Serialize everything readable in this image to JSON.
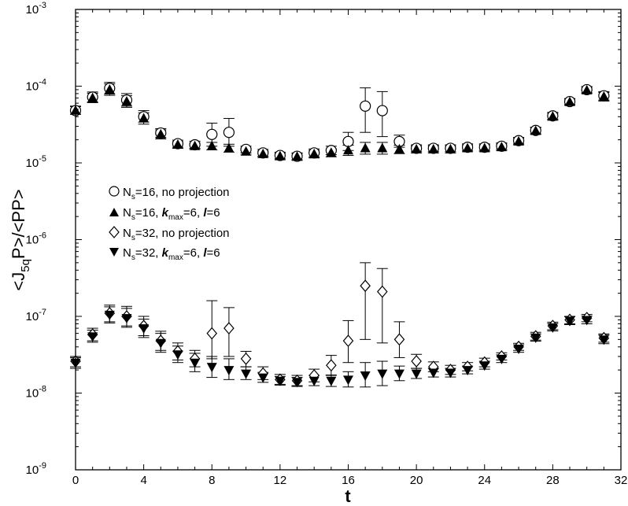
{
  "chart_data": {
    "type": "scatter",
    "xlabel": "t",
    "ylabel_parts": {
      "a": "<J",
      "a_sub": "5q",
      "b": "P>/<PP>"
    },
    "x_ticks": [
      0,
      4,
      8,
      12,
      16,
      20,
      24,
      28,
      32
    ],
    "y_ticks": [
      {
        "value": 1e-09,
        "base": "10",
        "exp": "-9"
      },
      {
        "value": 1e-08,
        "base": "10",
        "exp": "-8"
      },
      {
        "value": 1e-07,
        "base": "10",
        "exp": "-7"
      },
      {
        "value": 1e-06,
        "base": "10",
        "exp": "-6"
      },
      {
        "value": 1e-05,
        "base": "10",
        "exp": "-5"
      },
      {
        "value": 0.0001,
        "base": "10",
        "exp": "-4"
      },
      {
        "value": 0.001,
        "base": "10",
        "exp": "-3"
      }
    ],
    "xlim": [
      0,
      32
    ],
    "ylim": [
      1e-09,
      0.001
    ],
    "y_scale": "log",
    "grid": false,
    "legend_position": "center-left",
    "series": [
      {
        "marker": "circle-open",
        "legend": {
          "n": "N",
          "sub": "s",
          "rest": "=16, no projection"
        },
        "points": [
          [
            0,
            4.8e-05,
            4.3e-05,
            5.5e-05
          ],
          [
            1,
            7.2e-05,
            6.2e-05,
            8.4e-05
          ],
          [
            2,
            9.4e-05,
            7.9e-05,
            0.000112
          ],
          [
            3,
            6.6e-05,
            5.5e-05,
            8e-05
          ],
          [
            4,
            4e-05,
            3.4e-05,
            4.8e-05
          ],
          [
            5,
            2.45e-05,
            2.15e-05,
            2.8e-05
          ],
          [
            6,
            1.78e-05,
            1.6e-05,
            1.98e-05
          ],
          [
            7,
            1.72e-05,
            1.55e-05,
            1.92e-05
          ],
          [
            8,
            2.35e-05,
            1.65e-05,
            3.3e-05
          ],
          [
            9,
            2.5e-05,
            1.65e-05,
            3.8e-05
          ],
          [
            10,
            1.5e-05,
            1.35e-05,
            1.65e-05
          ],
          [
            11,
            1.35e-05,
            1.22e-05,
            1.5e-05
          ],
          [
            12,
            1.25e-05,
            1.13e-05,
            1.38e-05
          ],
          [
            13,
            1.22e-05,
            1.1e-05,
            1.35e-05
          ],
          [
            14,
            1.35e-05,
            1.2e-05,
            1.52e-05
          ],
          [
            15,
            1.45e-05,
            1.28e-05,
            1.65e-05
          ],
          [
            16,
            1.9e-05,
            1.45e-05,
            2.5e-05
          ],
          [
            17,
            5.5e-05,
            2.5e-05,
            9.5e-05
          ],
          [
            18,
            4.8e-05,
            2.2e-05,
            8.5e-05
          ],
          [
            19,
            1.9e-05,
            1.6e-05,
            2.3e-05
          ],
          [
            20,
            1.55e-05,
            1.4e-05,
            1.72e-05
          ],
          [
            21,
            1.55e-05,
            1.4e-05,
            1.72e-05
          ],
          [
            22,
            1.55e-05,
            1.4e-05,
            1.72e-05
          ],
          [
            23,
            1.6e-05,
            1.45e-05,
            1.77e-05
          ],
          [
            24,
            1.6e-05,
            1.45e-05,
            1.77e-05
          ],
          [
            25,
            1.65e-05,
            1.5e-05,
            1.82e-05
          ],
          [
            26,
            1.95e-05,
            1.77e-05,
            2.15e-05
          ],
          [
            27,
            2.65e-05,
            2.4e-05,
            2.92e-05
          ],
          [
            28,
            4.1e-05,
            3.7e-05,
            4.55e-05
          ],
          [
            29,
            6.3e-05,
            5.75e-05,
            6.9e-05
          ],
          [
            30,
            9e-05,
            8.2e-05,
            9.9e-05
          ],
          [
            31,
            7.5e-05,
            6.6e-05,
            8.5e-05
          ]
        ]
      },
      {
        "marker": "triangle-up-filled",
        "legend": {
          "n": "N",
          "sub": "s",
          "rest1": "=16, ",
          "k": "k",
          "ksub": "max",
          "rest2": "=6, ",
          "l": "l",
          "rest3": "=6"
        },
        "points": [
          [
            0,
            4.8e-05,
            4.3e-05,
            5.4e-05
          ],
          [
            1,
            7e-05,
            6.1e-05,
            8.1e-05
          ],
          [
            2,
            9e-05,
            7.6e-05,
            0.000107
          ],
          [
            3,
            6.3e-05,
            5.3e-05,
            7.5e-05
          ],
          [
            4,
            3.8e-05,
            3.2e-05,
            4.5e-05
          ],
          [
            5,
            2.35e-05,
            2.05e-05,
            2.7e-05
          ],
          [
            6,
            1.72e-05,
            1.55e-05,
            1.9e-05
          ],
          [
            7,
            1.65e-05,
            1.5e-05,
            1.82e-05
          ],
          [
            8,
            1.65e-05,
            1.48e-05,
            1.85e-05
          ],
          [
            9,
            1.55e-05,
            1.38e-05,
            1.75e-05
          ],
          [
            10,
            1.4e-05,
            1.27e-05,
            1.55e-05
          ],
          [
            11,
            1.3e-05,
            1.18e-05,
            1.43e-05
          ],
          [
            12,
            1.22e-05,
            1.1e-05,
            1.35e-05
          ],
          [
            13,
            1.2e-05,
            1.08e-05,
            1.33e-05
          ],
          [
            14,
            1.3e-05,
            1.16e-05,
            1.46e-05
          ],
          [
            15,
            1.35e-05,
            1.2e-05,
            1.52e-05
          ],
          [
            16,
            1.45e-05,
            1.25e-05,
            1.7e-05
          ],
          [
            17,
            1.55e-05,
            1.3e-05,
            1.85e-05
          ],
          [
            18,
            1.55e-05,
            1.3e-05,
            1.85e-05
          ],
          [
            19,
            1.5e-05,
            1.32e-05,
            1.7e-05
          ],
          [
            20,
            1.5e-05,
            1.35e-05,
            1.67e-05
          ],
          [
            21,
            1.5e-05,
            1.35e-05,
            1.67e-05
          ],
          [
            22,
            1.5e-05,
            1.35e-05,
            1.67e-05
          ],
          [
            23,
            1.55e-05,
            1.4e-05,
            1.72e-05
          ],
          [
            24,
            1.55e-05,
            1.4e-05,
            1.72e-05
          ],
          [
            25,
            1.6e-05,
            1.45e-05,
            1.77e-05
          ],
          [
            26,
            1.9e-05,
            1.72e-05,
            2.1e-05
          ],
          [
            27,
            2.6e-05,
            2.35e-05,
            2.88e-05
          ],
          [
            28,
            4e-05,
            3.6e-05,
            4.45e-05
          ],
          [
            29,
            6.2e-05,
            5.65e-05,
            6.8e-05
          ],
          [
            30,
            8.8e-05,
            8e-05,
            9.7e-05
          ],
          [
            31,
            7.3e-05,
            6.4e-05,
            8.3e-05
          ]
        ]
      },
      {
        "marker": "diamond-open",
        "legend": {
          "n": "N",
          "sub": "s",
          "rest": "=32, no projection"
        },
        "points": [
          [
            0,
            2.6e-08,
            2.2e-08,
            3e-08
          ],
          [
            1,
            5.8e-08,
            4.8e-08,
            7e-08
          ],
          [
            2,
            1.1e-07,
            8.5e-08,
            1.4e-07
          ],
          [
            3,
            1e-07,
            7.5e-08,
            1.35e-07
          ],
          [
            4,
            7.5e-08,
            5.6e-08,
            1e-07
          ],
          [
            5,
            4.8e-08,
            3.6e-08,
            6.4e-08
          ],
          [
            6,
            3.5e-08,
            2.7e-08,
            4.5e-08
          ],
          [
            7,
            2.8e-08,
            2.2e-08,
            3.6e-08
          ],
          [
            8,
            6e-08,
            2.8e-08,
            1.6e-07
          ],
          [
            9,
            7e-08,
            3e-08,
            1.3e-07
          ],
          [
            10,
            2.8e-08,
            2.2e-08,
            3.5e-08
          ],
          [
            11,
            1.8e-08,
            1.5e-08,
            2.2e-08
          ],
          [
            12,
            1.5e-08,
            1.3e-08,
            1.75e-08
          ],
          [
            13,
            1.45e-08,
            1.25e-08,
            1.7e-08
          ],
          [
            14,
            1.7e-08,
            1.4e-08,
            2.05e-08
          ],
          [
            15,
            2.3e-08,
            1.7e-08,
            3.1e-08
          ],
          [
            16,
            4.8e-08,
            2.5e-08,
            8.8e-08
          ],
          [
            17,
            2.5e-07,
            5e-08,
            5e-07
          ],
          [
            18,
            2.1e-07,
            4.5e-08,
            4.2e-07
          ],
          [
            19,
            5e-08,
            2.9e-08,
            8.5e-08
          ],
          [
            20,
            2.6e-08,
            2.1e-08,
            3.2e-08
          ],
          [
            21,
            2.2e-08,
            1.9e-08,
            2.55e-08
          ],
          [
            22,
            2e-08,
            1.75e-08,
            2.3e-08
          ],
          [
            23,
            2.2e-08,
            1.95e-08,
            2.5e-08
          ],
          [
            24,
            2.5e-08,
            2.2e-08,
            2.85e-08
          ],
          [
            25,
            3e-08,
            2.7e-08,
            3.35e-08
          ],
          [
            26,
            4e-08,
            3.6e-08,
            4.45e-08
          ],
          [
            27,
            5.5e-08,
            4.9e-08,
            6.2e-08
          ],
          [
            28,
            7.5e-08,
            6.7e-08,
            8.4e-08
          ],
          [
            29,
            9e-08,
            8e-08,
            1e-07
          ],
          [
            30,
            9.5e-08,
            8.5e-08,
            1.06e-07
          ],
          [
            31,
            5.2e-08,
            4.6e-08,
            5.9e-08
          ]
        ]
      },
      {
        "marker": "triangle-down-filled",
        "legend": {
          "n": "N",
          "sub": "s",
          "rest1": "=32, ",
          "k": "k",
          "ksub": "max",
          "rest2": "=6, ",
          "l": "l",
          "rest3": "=6"
        },
        "points": [
          [
            0,
            2.5e-08,
            2.1e-08,
            2.9e-08
          ],
          [
            1,
            5.5e-08,
            4.6e-08,
            6.6e-08
          ],
          [
            2,
            1.05e-07,
            8.2e-08,
            1.33e-07
          ],
          [
            3,
            9.5e-08,
            7.2e-08,
            1.27e-07
          ],
          [
            4,
            7e-08,
            5.3e-08,
            9.2e-08
          ],
          [
            5,
            4.5e-08,
            3.4e-08,
            6e-08
          ],
          [
            6,
            3.2e-08,
            2.5e-08,
            4.1e-08
          ],
          [
            7,
            2.5e-08,
            1.9e-08,
            3.3e-08
          ],
          [
            8,
            2.2e-08,
            1.6e-08,
            3e-08
          ],
          [
            9,
            2e-08,
            1.5e-08,
            2.8e-08
          ],
          [
            10,
            1.8e-08,
            1.5e-08,
            2.2e-08
          ],
          [
            11,
            1.6e-08,
            1.38e-08,
            1.86e-08
          ],
          [
            12,
            1.45e-08,
            1.27e-08,
            1.65e-08
          ],
          [
            13,
            1.4e-08,
            1.22e-08,
            1.6e-08
          ],
          [
            14,
            1.45e-08,
            1.25e-08,
            1.7e-08
          ],
          [
            15,
            1.45e-08,
            1.22e-08,
            1.72e-08
          ],
          [
            16,
            1.5e-08,
            1.2e-08,
            1.9e-08
          ],
          [
            17,
            1.7e-08,
            1.2e-08,
            2.5e-08
          ],
          [
            18,
            1.8e-08,
            1.25e-08,
            2.6e-08
          ],
          [
            19,
            1.8e-08,
            1.45e-08,
            2.25e-08
          ],
          [
            20,
            1.8e-08,
            1.55e-08,
            2.1e-08
          ],
          [
            21,
            1.85e-08,
            1.62e-08,
            2.1e-08
          ],
          [
            22,
            1.85e-08,
            1.62e-08,
            2.1e-08
          ],
          [
            23,
            2e-08,
            1.78e-08,
            2.25e-08
          ],
          [
            24,
            2.3e-08,
            2.05e-08,
            2.6e-08
          ],
          [
            25,
            2.8e-08,
            2.5e-08,
            3.15e-08
          ],
          [
            26,
            3.8e-08,
            3.4e-08,
            4.25e-08
          ],
          [
            27,
            5.3e-08,
            4.75e-08,
            5.9e-08
          ],
          [
            28,
            7.2e-08,
            6.45e-08,
            8.05e-08
          ],
          [
            29,
            8.8e-08,
            7.8e-08,
            9.9e-08
          ],
          [
            30,
            9e-08,
            8e-08,
            1.01e-07
          ],
          [
            31,
            5e-08,
            4.4e-08,
            5.7e-08
          ]
        ]
      }
    ]
  }
}
